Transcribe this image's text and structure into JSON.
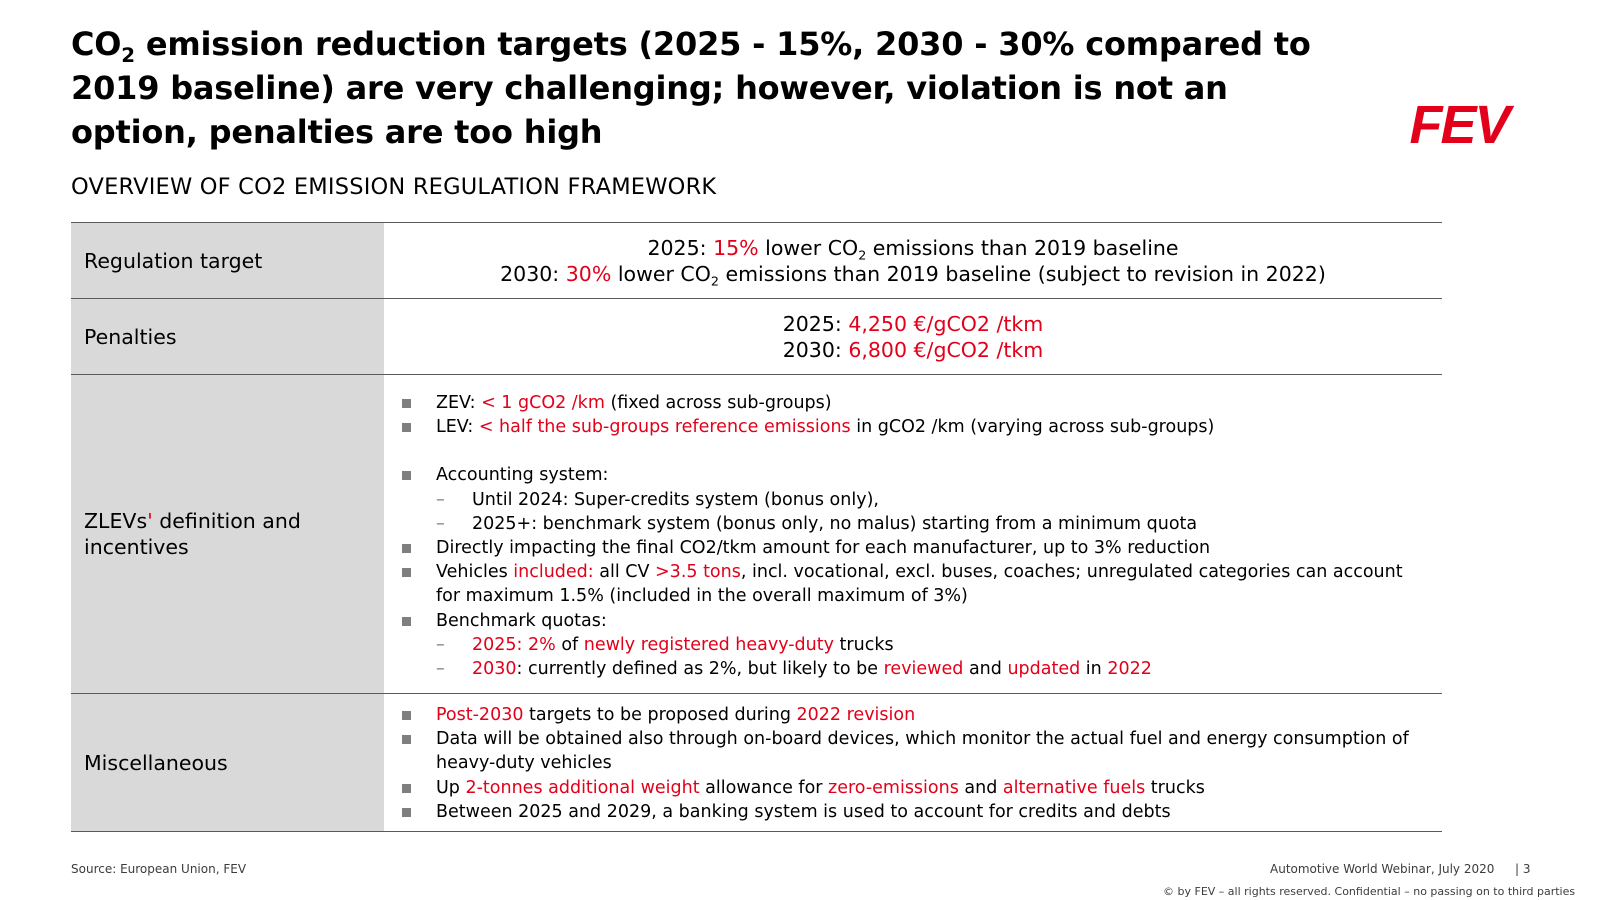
{
  "title": {
    "co": "CO",
    "sub": "2",
    "rest": " emission reduction targets (2025 - 15%, 2030 - 30% compared to 2019 baseline) are very  challenging; however, violation is not an option, penalties are too high"
  },
  "logo": {
    "text": "FEV",
    "color": "#e2001a"
  },
  "subtitle": "OVERVIEW OF CO2 EMISSION REGULATION FRAMEWORK",
  "colors": {
    "accent": "#e2001a",
    "label_bg": "#d9d9d9",
    "bullet": "#7f7f7f"
  },
  "rows": {
    "regulation": {
      "label": "Regulation target",
      "line1": {
        "a": "2025: ",
        "b": "15%",
        "c": " lower CO",
        "d": "2",
        "e": " emissions than 2019 baseline"
      },
      "line2": {
        "a": "2030: ",
        "b": "30%",
        "c": " lower CO",
        "d": "2",
        "e": " emissions than 2019 baseline (subject to revision in 2022)"
      }
    },
    "penalties": {
      "label": "Penalties",
      "line1": {
        "a": "2025: ",
        "b": "4,250 €/gCO2 /tkm"
      },
      "line2": {
        "a": "2030: ",
        "b": "6,800 €/gCO2 /tkm"
      }
    },
    "zlev": {
      "label_a": "ZLEVs",
      "label_mark": "'",
      "label_b": " definition and incentives",
      "zev": {
        "a": "ZEV: ",
        "b": "< 1 gCO2 /km",
        "c": " (fixed across sub-groups)"
      },
      "lev": {
        "a": "LEV: ",
        "b": "< half the sub-groups reference emissions",
        "c": " in gCO2 /km (varying across sub-groups)"
      },
      "accounting": "Accounting system:",
      "until2024": "Until 2024: Super-credits system (bonus only),",
      "from2025": "2025+: benchmark system (bonus only, no malus) starting from a minimum quota",
      "impact": "Directly impacting the final CO2/tkm amount for each manufacturer, up to 3% reduction",
      "vehicles": {
        "a": "Vehicles ",
        "b": "included:",
        "c": " all CV ",
        "d": ">3.5 tons",
        "e": ", incl. vocational, excl. buses, coaches; unregulated categories can account for maximum 1.5% (included in the overall maximum of 3%)"
      },
      "quotas": "Benchmark quotas:",
      "q2025": {
        "a": "2025: 2%",
        "b": " of ",
        "c": "newly registered heavy-duty",
        "d": " trucks"
      },
      "q2030": {
        "a": "2030",
        "b": ": currently defined as 2%, but likely to be ",
        "c": "reviewed",
        "d": " and ",
        "e": "updated",
        "f": " in ",
        "g": "2022"
      }
    },
    "misc": {
      "label": "Miscellaneous",
      "b1": {
        "a": "Post-2030",
        "b": " targets to be proposed during ",
        "c": "2022 revision"
      },
      "b2": "Data will be obtained also through on-board devices, which monitor the actual fuel and energy consumption of heavy-duty vehicles",
      "b3": {
        "a": "Up ",
        "b": "2-tonnes additional weight",
        "c": " allowance for ",
        "d": "zero-emissions",
        "e": " and ",
        "f": "alternative fuels",
        "g": " trucks"
      },
      "b4": "Between 2025 and 2029, a banking system is used to account for credits and debts"
    }
  },
  "footer": {
    "source": "Source: European Union, FEV",
    "event": "Automotive World Webinar, July 2020",
    "page": "| 3",
    "copyright": "© by FEV – all rights reserved. Confidential – no passing on to third parties"
  }
}
